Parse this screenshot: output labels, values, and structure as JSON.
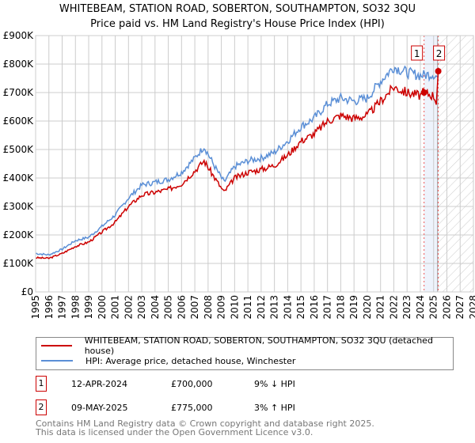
{
  "title_line1": "WHITEBEAM, STATION ROAD, SOBERTON, SOUTHAMPTON, SO32 3QU",
  "title_line2": "Price paid vs. HM Land Registry's House Price Index (HPI)",
  "chart_data": {
    "type": "line",
    "ylim": [
      0,
      900000
    ],
    "xlim": [
      1995,
      2028
    ],
    "yticks": [
      "£0",
      "£100K",
      "£200K",
      "£300K",
      "£400K",
      "£500K",
      "£600K",
      "£700K",
      "£800K",
      "£900K"
    ],
    "xticks": [
      "1995",
      "1996",
      "1997",
      "1998",
      "1999",
      "2000",
      "2001",
      "2002",
      "2003",
      "2004",
      "2005",
      "2006",
      "2007",
      "2008",
      "2009",
      "2010",
      "2011",
      "2012",
      "2013",
      "2014",
      "2015",
      "2016",
      "2017",
      "2018",
      "2019",
      "2020",
      "2021",
      "2022",
      "2023",
      "2024",
      "2025",
      "2026",
      "2027",
      "2028"
    ],
    "series": [
      {
        "name": "WHITEBEAM, STATION ROAD, SOBERTON, SOUTHAMPTON, SO32 3QU (detached house)",
        "color": "#cc0000",
        "x": [
          1995,
          1996,
          1997,
          1998,
          1999,
          2000,
          2001,
          2002,
          2003,
          2004,
          2005,
          2006,
          2007,
          2007.7,
          2008.5,
          2009.2,
          2010,
          2011,
          2012,
          2013,
          2014,
          2015,
          2016,
          2017,
          2018,
          2019,
          2020,
          2021,
          2022,
          2023,
          2024,
          2024.28,
          2025,
          2025.2,
          2025.35
        ],
        "y": [
          120000,
          118000,
          135000,
          160000,
          175000,
          210000,
          245000,
          300000,
          340000,
          350000,
          360000,
          380000,
          425000,
          460000,
          400000,
          350000,
          400000,
          420000,
          430000,
          445000,
          480000,
          530000,
          555000,
          600000,
          620000,
          610000,
          620000,
          670000,
          720000,
          700000,
          690000,
          700000,
          690000,
          670000,
          775000
        ]
      },
      {
        "name": "HPI: Average price, detached house, Winchester",
        "color": "#5b8fd6",
        "x": [
          1995,
          1996,
          1997,
          1998,
          1999,
          2000,
          2001,
          2002,
          2003,
          2004,
          2005,
          2006,
          2007,
          2007.7,
          2008.5,
          2009.2,
          2010,
          2011,
          2012,
          2013,
          2014,
          2015,
          2016,
          2017,
          2018,
          2019,
          2020,
          2021,
          2022,
          2023,
          2024,
          2025,
          2025.35
        ],
        "y": [
          135000,
          130000,
          150000,
          180000,
          192000,
          230000,
          270000,
          330000,
          375000,
          385000,
          395000,
          420000,
          470000,
          510000,
          440000,
          385000,
          440000,
          460000,
          470000,
          490000,
          530000,
          580000,
          610000,
          660000,
          680000,
          670000,
          680000,
          740000,
          790000,
          770000,
          760000,
          765000,
          752000
        ]
      }
    ],
    "sales": [
      {
        "label": "1",
        "date": "12-APR-2024",
        "price": "£700,000",
        "hpi": "9% ↓ HPI",
        "x": 2024.28,
        "y": 700000
      },
      {
        "label": "2",
        "date": "09-MAY-2025",
        "price": "£775,000",
        "hpi": "3% ↑ HPI",
        "x": 2025.35,
        "y": 775000
      }
    ],
    "forecast_start": 2025.3
  },
  "footer1": "Contains HM Land Registry data © Crown copyright and database right 2025.",
  "footer2": "This data is licensed under the Open Government Licence v3.0."
}
